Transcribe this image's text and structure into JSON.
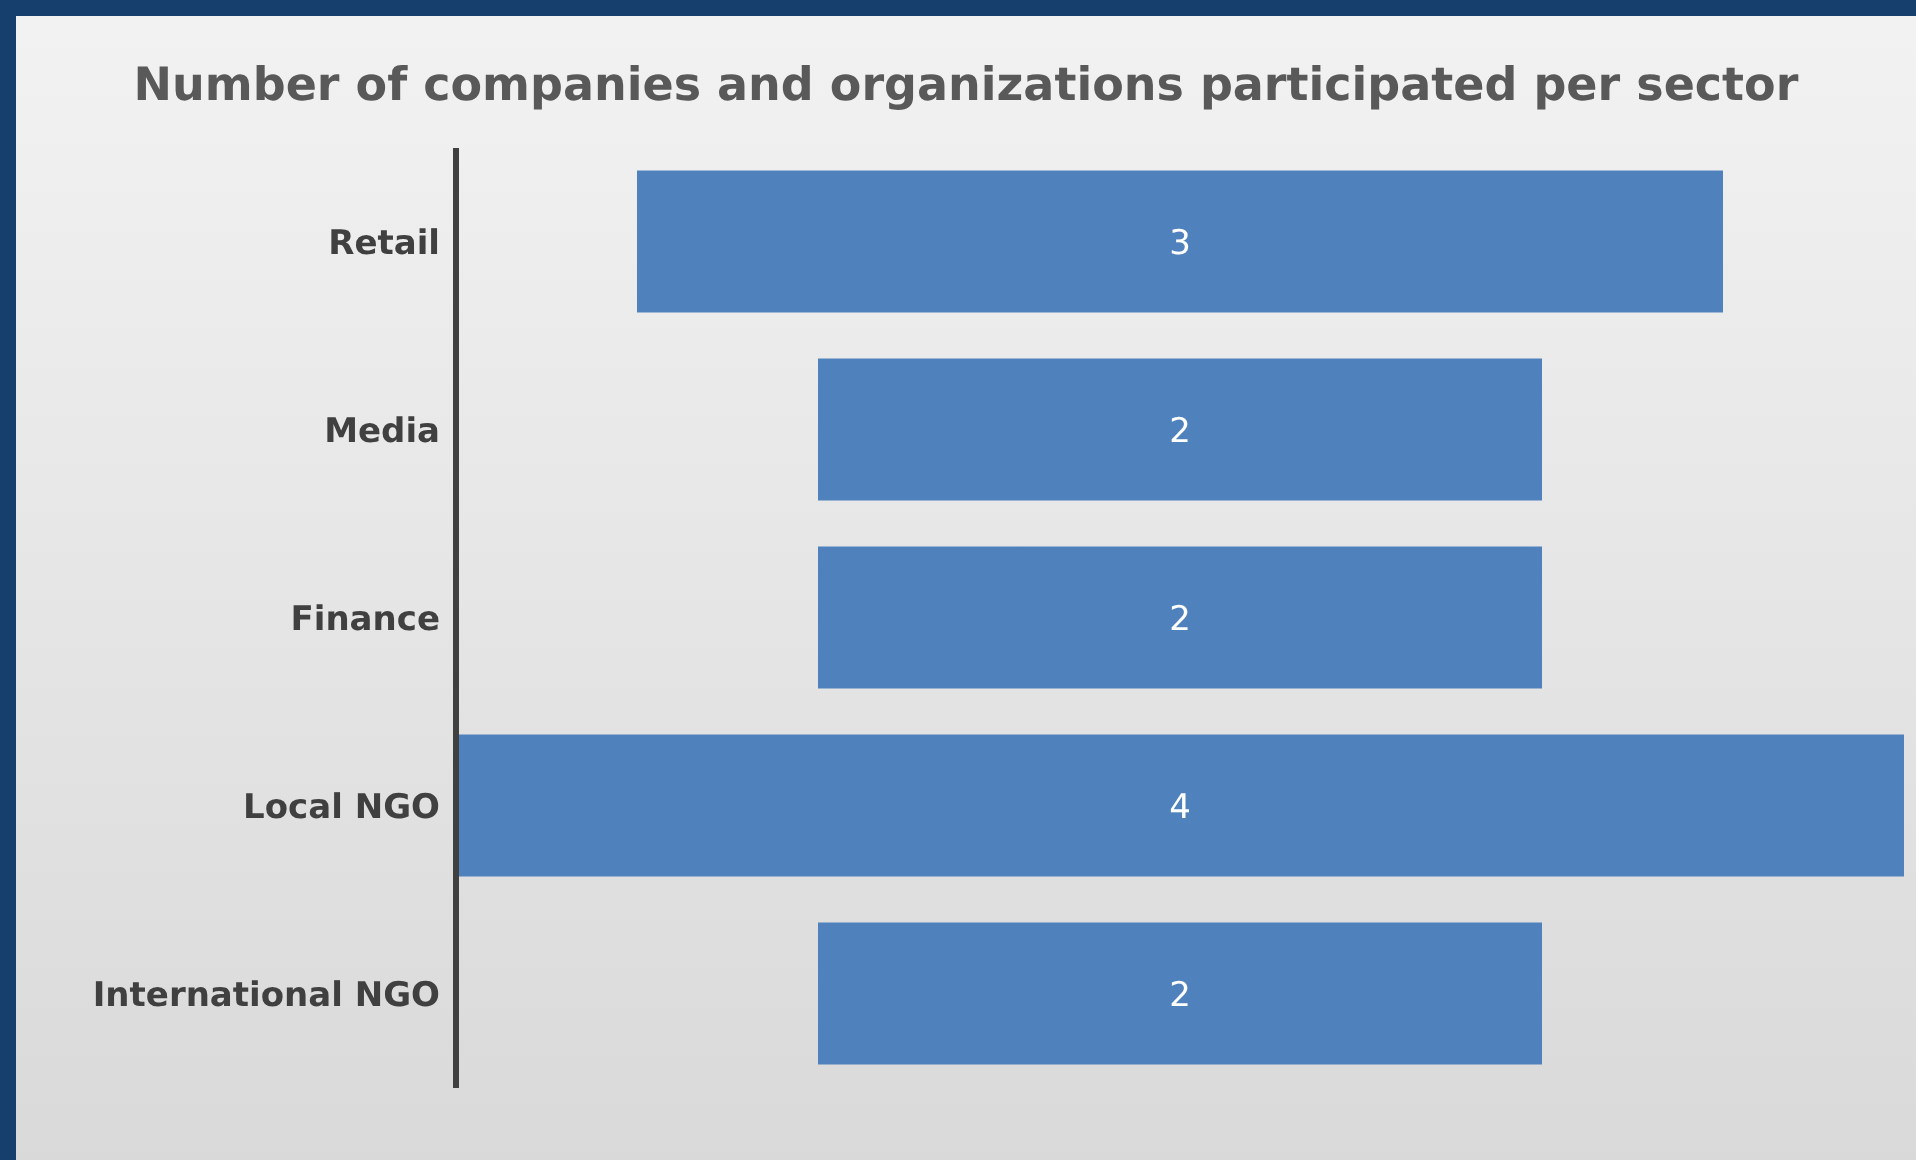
{
  "chart_data": {
    "type": "other",
    "title": "Number of companies and organizations participated per sector",
    "categories": [
      "Retail",
      "Media",
      "Finance",
      "Local NGO",
      "International NGO"
    ],
    "values": [
      3,
      2,
      2,
      4,
      2
    ],
    "color": "#4f81bd",
    "data_labels": true
  }
}
